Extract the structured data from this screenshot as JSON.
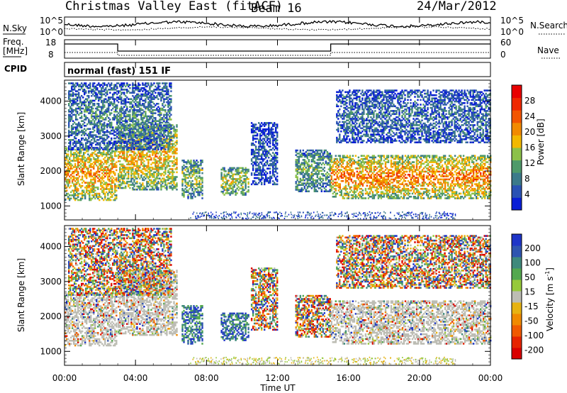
{
  "header": {
    "title": "Christmas Valley East (fitACF)",
    "beam": "Beam 16",
    "date": "24/Mar/2012"
  },
  "noise_panel": {
    "left_label": "N.Sky",
    "right_label": "N.Search",
    "ticks_left": [
      "10^5",
      "10^0"
    ],
    "ticks_right": [
      "10^5",
      "10^0"
    ]
  },
  "freq_panel": {
    "left_label_line1": "Freq.",
    "left_label_line2": "[MHz]",
    "right_label": "Nave",
    "ticks_left": [
      "18",
      "8"
    ],
    "ticks_right": [
      "60",
      "0"
    ]
  },
  "cpid_panel": {
    "label": "CPID",
    "value": "normal (fast) 151 IF"
  },
  "colors": {
    "power_scale": [
      "#0a1fd6",
      "#2a52b4",
      "#3c7a8a",
      "#4f9a6a",
      "#8cc14a",
      "#f3b800",
      "#f28a00",
      "#f25500",
      "#ef2800",
      "#e80000"
    ],
    "velocity_scale": [
      "#1e35c8",
      "#2f55b0",
      "#3f8a7c",
      "#54a84f",
      "#96c93a",
      "#bdbdb4",
      "#e7b312",
      "#f08a00",
      "#f05a00",
      "#e62400",
      "#d90000"
    ],
    "ground_scatter": "#bdbdb4"
  },
  "chart_data": [
    {
      "type": "heatmap",
      "panel": "power",
      "ylabel": "Slant Range [km]",
      "yticks": [
        "1000",
        "2000",
        "3000",
        "4000"
      ],
      "ylim": [
        600,
        4600
      ],
      "xlim": [
        0,
        24
      ],
      "colorbar": {
        "label": "Power [dB]",
        "ticks": [
          "4",
          "8",
          "12",
          "16",
          "20",
          "24",
          "28"
        ],
        "range": [
          0,
          32
        ]
      }
    },
    {
      "type": "heatmap",
      "panel": "velocity",
      "ylabel": "Slant Range [km]",
      "yticks": [
        "1000",
        "2000",
        "3000",
        "4000"
      ],
      "ylim": [
        600,
        4600
      ],
      "xlim": [
        0,
        24
      ],
      "colorbar": {
        "label": "Velocity [m s",
        "label_sup": "-1",
        "label_end": "]",
        "ticks": [
          "200",
          "100",
          "50",
          "15",
          "-15",
          "-50",
          "-100",
          "-200"
        ]
      }
    }
  ],
  "time_axis": {
    "xlabel": "Time UT",
    "ticks": [
      "00:00",
      "04:00",
      "08:00",
      "12:00",
      "16:00",
      "20:00",
      "00:00"
    ]
  },
  "echo_regions": [
    {
      "t0": 0.0,
      "t1": 2.9,
      "r0": 1150,
      "r1": 2650,
      "level": 0.62
    },
    {
      "t0": 3.0,
      "t1": 6.3,
      "r0": 1450,
      "r1": 3300,
      "level": 0.55
    },
    {
      "t0": 6.6,
      "t1": 7.8,
      "r0": 1200,
      "r1": 2300,
      "level": 0.4
    },
    {
      "t0": 8.8,
      "t1": 10.4,
      "r0": 1300,
      "r1": 2100,
      "level": 0.45
    },
    {
      "t0": 10.5,
      "t1": 12.0,
      "r0": 1600,
      "r1": 3400,
      "level": 0.15
    },
    {
      "t0": 13.0,
      "t1": 15.0,
      "r0": 1400,
      "r1": 2600,
      "level": 0.35
    },
    {
      "t0": 15.0,
      "t1": 24.0,
      "r0": 1200,
      "r1": 2450,
      "level": 0.65
    },
    {
      "t0": 15.3,
      "t1": 24.0,
      "r0": 2800,
      "r1": 4300,
      "level": 0.2
    },
    {
      "t0": 0.2,
      "t1": 6.0,
      "r0": 2600,
      "r1": 4500,
      "level": 0.25
    }
  ]
}
